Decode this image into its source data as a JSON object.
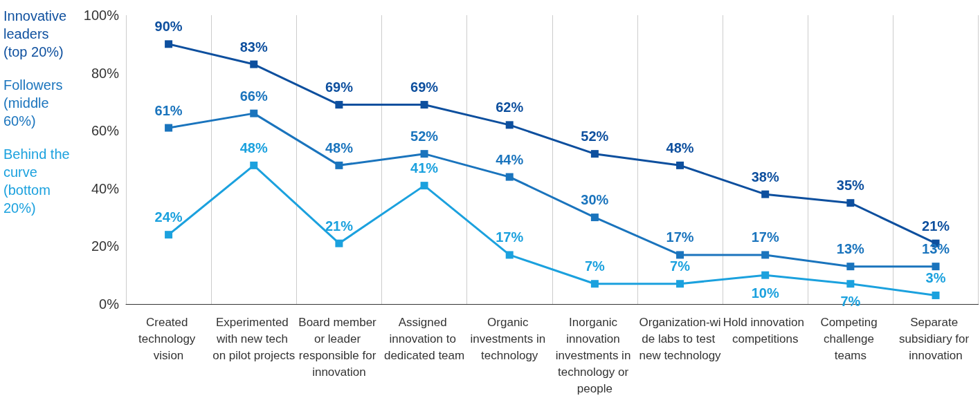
{
  "chart_data": {
    "type": "line",
    "categories": [
      "Created technology vision",
      "Experimented with new tech on pilot projects",
      "Board member or leader responsible for innovation",
      "Assigned innovation to dedicated team",
      "Organic investments in technology",
      "Inorganic innovation investments in technology or people",
      "Organization-wide labs to test new technology",
      "Hold innovation competitions",
      "Competing challenge teams",
      "Separate subsidiary for innovation"
    ],
    "series": [
      {
        "name": "Innovative leaders (top 20%)",
        "color": "#0d4f9e",
        "values": [
          90,
          83,
          69,
          69,
          62,
          52,
          48,
          38,
          35,
          21
        ],
        "value_labels": [
          "90%",
          "83%",
          "69%",
          "69%",
          "62%",
          "52%",
          "48%",
          "38%",
          "35%",
          "21%"
        ]
      },
      {
        "name": "Followers (middle 60%)",
        "color": "#1a74bd",
        "values": [
          61,
          66,
          48,
          52,
          44,
          30,
          17,
          17,
          13,
          13
        ],
        "value_labels": [
          "61%",
          "66%",
          "48%",
          "52%",
          "44%",
          "30%",
          "17%",
          "17%",
          "13%",
          "13%"
        ]
      },
      {
        "name": "Behind the curve (bottom 20%)",
        "color": "#1ba1de",
        "values": [
          24,
          48,
          21,
          41,
          17,
          7,
          7,
          10,
          7,
          3
        ],
        "value_labels": [
          "24%",
          "48%",
          "21%",
          "41%",
          "17%",
          "7%",
          "7%",
          "10%",
          "7%",
          "3%"
        ]
      }
    ],
    "ylim": [
      0,
      100
    ],
    "yticks": [
      {
        "value": 0,
        "label": "0%"
      },
      {
        "value": 20,
        "label": "20%"
      },
      {
        "value": 40,
        "label": "40%"
      },
      {
        "value": 60,
        "label": "60%"
      },
      {
        "value": 80,
        "label": "80%"
      },
      {
        "value": 100,
        "label": "100%"
      }
    ],
    "grid": "x",
    "legend": "left",
    "marker": "square",
    "line_style": "solid"
  }
}
